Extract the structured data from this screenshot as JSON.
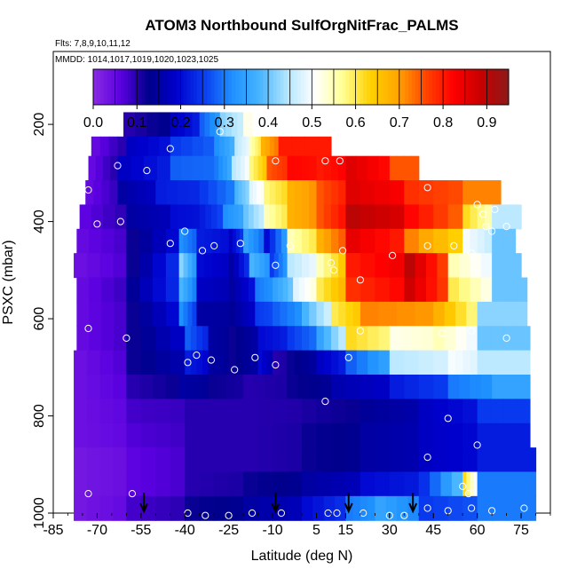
{
  "chart_data": {
    "type": "heatmap",
    "title": "ATOM3 Northbound SulfOrgNitFrac_PALMS",
    "subtitle_flights": "Flts: 7,8,9,10,11,12",
    "subtitle_dates": "MMDD: 1014,1017,1019,1020,1023,1025",
    "xlabel": "Latitude (deg N)",
    "ylabel": "PSXC (mbar)",
    "xlim": [
      -85,
      85
    ],
    "ylim": [
      1000,
      50
    ],
    "x_ticks": [
      -85,
      -70,
      -55,
      -40,
      -25,
      -10,
      5,
      15,
      30,
      45,
      60,
      75
    ],
    "y_ticks": [
      200,
      400,
      600,
      800,
      1000
    ],
    "colorbar": {
      "min": 0.0,
      "max": 0.95,
      "tick_values": [
        0.0,
        0.1,
        0.2,
        0.3,
        0.4,
        0.5,
        0.6,
        0.7,
        0.8,
        0.9
      ],
      "tick_labels": [
        "0.0",
        "0.1",
        "0.2",
        "0.3",
        "0.4",
        "0.5",
        "0.6",
        "0.7",
        "0.8",
        "0.9"
      ],
      "colors": [
        "#8a2be2",
        "#5a00e0",
        "#00008b",
        "#0000cd",
        "#0a3cf0",
        "#1e90ff",
        "#46b4ff",
        "#b4e6ff",
        "#ffffff",
        "#ffff96",
        "#ffd200",
        "#ffa500",
        "#ff4500",
        "#ff0000",
        "#c80000",
        "#8b1a1a"
      ]
    },
    "arrow_latitudes": [
      -54,
      -9,
      16,
      38
    ],
    "rows": [
      {
        "p": 200,
        "x0": -61,
        "x1": -17,
        "segments": [
          [
            -61,
            0.1
          ],
          [
            -45,
            0.18
          ],
          [
            -35,
            0.28
          ],
          [
            -28,
            0.42
          ],
          [
            -20,
            0.52
          ]
        ]
      },
      {
        "p": 250,
        "x0": -72,
        "x1": 10,
        "segments": [
          [
            -72,
            0.05
          ],
          [
            -60,
            0.18
          ],
          [
            -45,
            0.25
          ],
          [
            -30,
            0.32
          ],
          [
            -23,
            0.45
          ],
          [
            -18,
            0.55
          ],
          [
            -14,
            0.68
          ],
          [
            -8,
            0.8
          ]
        ]
      },
      {
        "p": 290,
        "x0": -73,
        "x1": 40,
        "segments": [
          [
            -73,
            0.05
          ],
          [
            -63,
            0.18
          ],
          [
            -45,
            0.28
          ],
          [
            -30,
            0.3
          ],
          [
            -24,
            0.45
          ],
          [
            -18,
            0.58
          ],
          [
            -12,
            0.75
          ],
          [
            -5,
            0.82
          ],
          [
            5,
            0.8
          ],
          [
            15,
            0.86
          ],
          [
            30,
            0.75
          ]
        ]
      },
      {
        "p": 340,
        "x0": -74,
        "x1": 68,
        "segments": [
          [
            -74,
            0.05
          ],
          [
            -63,
            0.15
          ],
          [
            -50,
            0.22
          ],
          [
            -35,
            0.25
          ],
          [
            -23,
            0.38
          ],
          [
            -18,
            0.48
          ],
          [
            -13,
            0.58
          ],
          [
            -5,
            0.68
          ],
          [
            5,
            0.75
          ],
          [
            15,
            0.86
          ],
          [
            35,
            0.78
          ],
          [
            55,
            0.72
          ]
        ]
      },
      {
        "p": 390,
        "x0": -76,
        "x1": 75,
        "segments": [
          [
            -76,
            0.06
          ],
          [
            -60,
            0.15
          ],
          [
            -45,
            0.2
          ],
          [
            -35,
            0.22
          ],
          [
            -27,
            0.32
          ],
          [
            -20,
            0.4
          ],
          [
            -13,
            0.55
          ],
          [
            -5,
            0.68
          ],
          [
            5,
            0.75
          ],
          [
            15,
            0.9
          ],
          [
            35,
            0.82
          ],
          [
            55,
            0.62
          ],
          [
            65,
            0.45
          ]
        ]
      },
      {
        "p": 440,
        "x0": -77,
        "x1": 73,
        "segments": [
          [
            -77,
            0.05
          ],
          [
            -60,
            0.12
          ],
          [
            -42,
            0.32
          ],
          [
            -36,
            0.22
          ],
          [
            -25,
            0.18
          ],
          [
            -20,
            0.35
          ],
          [
            -13,
            0.2
          ],
          [
            -5,
            0.55
          ],
          [
            5,
            0.68
          ],
          [
            15,
            0.85
          ],
          [
            35,
            0.72
          ],
          [
            55,
            0.5
          ],
          [
            65,
            0.4
          ]
        ]
      },
      {
        "p": 490,
        "x0": -78,
        "x1": 75,
        "segments": [
          [
            -78,
            0.04
          ],
          [
            -60,
            0.12
          ],
          [
            -42,
            0.42
          ],
          [
            -36,
            0.2
          ],
          [
            -25,
            0.15
          ],
          [
            -18,
            0.38
          ],
          [
            -11,
            0.25
          ],
          [
            -5,
            0.45
          ],
          [
            5,
            0.55
          ],
          [
            15,
            0.8
          ],
          [
            35,
            0.9
          ],
          [
            50,
            0.55
          ],
          [
            65,
            0.4
          ]
        ]
      },
      {
        "p": 540,
        "x0": -77,
        "x1": 77,
        "segments": [
          [
            -77,
            0.05
          ],
          [
            -60,
            0.14
          ],
          [
            -42,
            0.38
          ],
          [
            -36,
            0.18
          ],
          [
            -25,
            0.15
          ],
          [
            -16,
            0.3
          ],
          [
            -10,
            0.35
          ],
          [
            -3,
            0.48
          ],
          [
            5,
            0.6
          ],
          [
            15,
            0.78
          ],
          [
            35,
            0.88
          ],
          [
            50,
            0.6
          ],
          [
            65,
            0.4
          ]
        ]
      },
      {
        "p": 590,
        "x0": -77,
        "x1": 77,
        "segments": [
          [
            -77,
            0.05
          ],
          [
            -60,
            0.12
          ],
          [
            -42,
            0.32
          ],
          [
            -36,
            0.15
          ],
          [
            -25,
            0.14
          ],
          [
            -16,
            0.25
          ],
          [
            -10,
            0.28
          ],
          [
            0,
            0.38
          ],
          [
            10,
            0.6
          ],
          [
            20,
            0.72
          ],
          [
            45,
            0.68
          ],
          [
            60,
            0.42
          ]
        ]
      },
      {
        "p": 640,
        "x0": -77,
        "x1": 78,
        "segments": [
          [
            -77,
            0.05
          ],
          [
            -60,
            0.12
          ],
          [
            -40,
            0.28
          ],
          [
            -32,
            0.15
          ],
          [
            -25,
            0.12
          ],
          [
            -15,
            0.2
          ],
          [
            -5,
            0.25
          ],
          [
            5,
            0.35
          ],
          [
            15,
            0.62
          ],
          [
            30,
            0.52
          ],
          [
            45,
            0.55
          ],
          [
            60,
            0.4
          ]
        ]
      },
      {
        "p": 690,
        "x0": -78,
        "x1": 78,
        "segments": [
          [
            -78,
            0.04
          ],
          [
            -60,
            0.12
          ],
          [
            -40,
            0.22
          ],
          [
            -32,
            0.15
          ],
          [
            -25,
            0.12
          ],
          [
            -15,
            0.2
          ],
          [
            -10,
            0.1
          ],
          [
            -5,
            0.12
          ],
          [
            5,
            0.18
          ],
          [
            15,
            0.28
          ],
          [
            30,
            0.45
          ],
          [
            50,
            0.5
          ],
          [
            60,
            0.45
          ]
        ]
      },
      {
        "p": 740,
        "x0": -78,
        "x1": 78,
        "segments": [
          [
            -78,
            0.04
          ],
          [
            -60,
            0.1
          ],
          [
            -42,
            0.15
          ],
          [
            -32,
            0.12
          ],
          [
            -20,
            0.1
          ],
          [
            -5,
            0.12
          ],
          [
            10,
            0.16
          ],
          [
            30,
            0.22
          ],
          [
            50,
            0.3
          ],
          [
            65,
            0.35
          ]
        ]
      },
      {
        "p": 790,
        "x0": -78,
        "x1": 78,
        "segments": [
          [
            -78,
            0.04
          ],
          [
            -60,
            0.08
          ],
          [
            -40,
            0.1
          ],
          [
            -20,
            0.1
          ],
          [
            0,
            0.11
          ],
          [
            20,
            0.14
          ],
          [
            40,
            0.18
          ],
          [
            60,
            0.25
          ]
        ]
      },
      {
        "p": 840,
        "x0": -78,
        "x1": 78,
        "segments": [
          [
            -78,
            0.04
          ],
          [
            -60,
            0.07
          ],
          [
            -40,
            0.1
          ],
          [
            -20,
            0.1
          ],
          [
            0,
            0.12
          ],
          [
            20,
            0.15
          ],
          [
            40,
            0.18
          ],
          [
            60,
            0.22
          ]
        ]
      },
      {
        "p": 890,
        "x0": -78,
        "x1": 80,
        "segments": [
          [
            -78,
            0.03
          ],
          [
            -60,
            0.06
          ],
          [
            -40,
            0.1
          ],
          [
            -20,
            0.1
          ],
          [
            0,
            0.12
          ],
          [
            20,
            0.15
          ],
          [
            40,
            0.18
          ],
          [
            60,
            0.22
          ]
        ]
      },
      {
        "p": 940,
        "x0": -78,
        "x1": 80,
        "segments": [
          [
            -78,
            0.03
          ],
          [
            -60,
            0.06
          ],
          [
            -40,
            0.1
          ],
          [
            -20,
            0.12
          ],
          [
            0,
            0.15
          ],
          [
            20,
            0.2
          ],
          [
            40,
            0.24
          ],
          [
            55,
            0.62
          ],
          [
            60,
            0.3
          ]
        ]
      },
      {
        "p": 990,
        "x0": -78,
        "x1": 80,
        "segments": [
          [
            -78,
            0.03
          ],
          [
            -60,
            0.08
          ],
          [
            -40,
            0.12
          ],
          [
            -20,
            0.15
          ],
          [
            0,
            0.2
          ],
          [
            15,
            0.3
          ],
          [
            25,
            0.35
          ],
          [
            40,
            0.25
          ],
          [
            60,
            0.3
          ]
        ]
      }
    ],
    "points": [
      [
        -63,
        205
      ],
      [
        -28,
        215
      ],
      [
        -17,
        200
      ],
      [
        -45,
        250
      ],
      [
        -53,
        295
      ],
      [
        -63,
        285
      ],
      [
        -9,
        275
      ],
      [
        8,
        275
      ],
      [
        13,
        275
      ],
      [
        -73,
        335
      ],
      [
        -77,
        335
      ],
      [
        43,
        330
      ],
      [
        60,
        365
      ],
      [
        62,
        385
      ],
      [
        66,
        375
      ],
      [
        63,
        410
      ],
      [
        65,
        420
      ],
      [
        70,
        410
      ],
      [
        -70,
        405
      ],
      [
        -62,
        400
      ],
      [
        -40,
        420
      ],
      [
        -45,
        445
      ],
      [
        -30,
        450
      ],
      [
        -21,
        445
      ],
      [
        -34,
        460
      ],
      [
        -9,
        490
      ],
      [
        -4,
        450
      ],
      [
        10,
        485
      ],
      [
        11,
        500
      ],
      [
        14,
        460
      ],
      [
        20,
        520
      ],
      [
        31,
        470
      ],
      [
        43,
        450
      ],
      [
        52,
        450
      ],
      [
        58,
        465
      ],
      [
        -80,
        475
      ],
      [
        -73,
        620
      ],
      [
        -60,
        640
      ],
      [
        -39,
        690
      ],
      [
        -36,
        675
      ],
      [
        -31,
        685
      ],
      [
        -23,
        705
      ],
      [
        -16,
        680
      ],
      [
        -9,
        695
      ],
      [
        16,
        680
      ],
      [
        20,
        625
      ],
      [
        48,
        630
      ],
      [
        58,
        625
      ],
      [
        70,
        640
      ],
      [
        8,
        770
      ],
      [
        50,
        805
      ],
      [
        43,
        885
      ],
      [
        60,
        860
      ],
      [
        55,
        945
      ],
      [
        57,
        960
      ],
      [
        -73,
        960
      ],
      [
        -58,
        960
      ],
      [
        -39,
        1000
      ],
      [
        -33,
        1005
      ],
      [
        -25,
        1005
      ],
      [
        -17,
        1000
      ],
      [
        -7,
        1000
      ],
      [
        9,
        1000
      ],
      [
        12,
        1000
      ],
      [
        21,
        1000
      ],
      [
        30,
        1005
      ],
      [
        35,
        1005
      ],
      [
        43,
        990
      ],
      [
        50,
        995
      ],
      [
        58,
        990
      ],
      [
        65,
        995
      ],
      [
        76,
        990
      ]
    ]
  }
}
